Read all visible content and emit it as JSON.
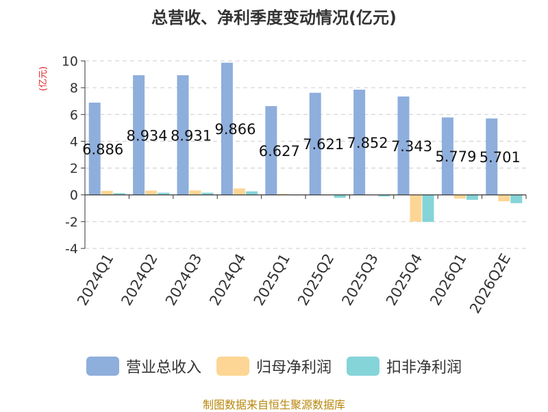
{
  "chart_data": {
    "type": "bar",
    "title": "总营收、净利季度变动情况(亿元)",
    "ylabel": "(亿元)",
    "xlabel": "",
    "ylim": [
      -4,
      10
    ],
    "yticks": [
      -4,
      -2,
      0,
      2,
      4,
      6,
      8,
      10
    ],
    "grid": true,
    "legend_position": "bottom",
    "categories": [
      "2024Q1",
      "2024Q2",
      "2024Q3",
      "2024Q4",
      "2025Q1",
      "2025Q2",
      "2025Q3",
      "2025Q4",
      "2026Q1",
      "2026Q2E"
    ],
    "series": [
      {
        "name": "营业总收入",
        "color": "#8eaedc",
        "values": [
          6.886,
          8.934,
          8.931,
          9.866,
          6.627,
          7.621,
          7.852,
          7.343,
          5.779,
          5.701
        ],
        "labels": [
          "6.886",
          "8.934",
          "8.931",
          "9.866",
          "6.627",
          "7.621",
          "7.852",
          "7.343",
          "5.779",
          "5.701"
        ]
      },
      {
        "name": "归母净利润",
        "color": "#fdd695",
        "values": [
          0.3,
          0.32,
          0.33,
          0.48,
          0.07,
          -0.03,
          -0.04,
          -2.0,
          -0.28,
          -0.48
        ]
      },
      {
        "name": "扣非净利润",
        "color": "#85d4d8",
        "values": [
          0.13,
          0.16,
          0.16,
          0.26,
          -0.02,
          -0.22,
          -0.12,
          -2.02,
          -0.37,
          -0.62
        ]
      }
    ]
  },
  "source_text": "制图数据来自恒生聚源数据库"
}
